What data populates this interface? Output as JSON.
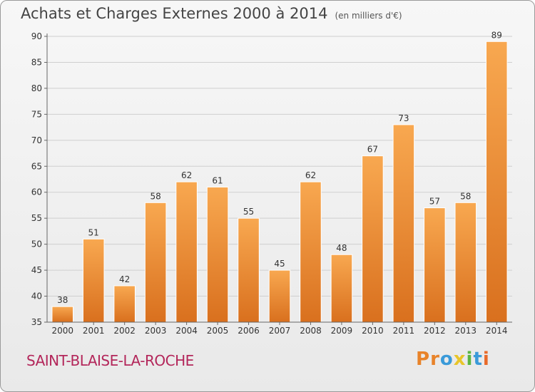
{
  "title": "Achats et Charges Externes 2000 à 2014",
  "subtitle": "(en milliers d'€)",
  "place": "SAINT-BLAISE-LA-ROCHE",
  "brand": {
    "letters": [
      "P",
      "r",
      "o",
      "x",
      "i",
      "t",
      "i"
    ],
    "colors": [
      "#e8832a",
      "#e8832a",
      "#3a9ad9",
      "#e8c52a",
      "#5bb542",
      "#3a9ad9",
      "#e86a2a"
    ]
  },
  "colors": {
    "bar_light": "#f8a850",
    "bar_dark": "#d9701e",
    "grid": "#cfcfcf",
    "axis": "#666666"
  },
  "chart_data": {
    "type": "bar",
    "title": "Achats et Charges Externes 2000 à 2014",
    "subtitle": "(en milliers d'€)",
    "categories": [
      "2000",
      "2001",
      "2002",
      "2003",
      "2004",
      "2005",
      "2006",
      "2007",
      "2008",
      "2009",
      "2010",
      "2011",
      "2012",
      "2013",
      "2014"
    ],
    "values": [
      38,
      51,
      42,
      58,
      62,
      61,
      55,
      45,
      62,
      48,
      67,
      73,
      57,
      58,
      89
    ],
    "ylim": [
      35,
      90
    ],
    "yticks": [
      35,
      40,
      45,
      50,
      55,
      60,
      65,
      70,
      75,
      80,
      85,
      90
    ],
    "grid": true,
    "data_labels": true
  }
}
